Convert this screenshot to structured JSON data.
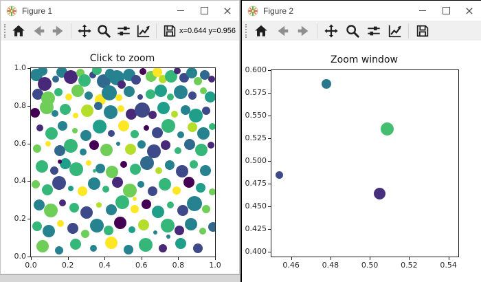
{
  "chrome": {
    "close_glyph": "×",
    "controls": [
      "minimize",
      "maximize",
      "close"
    ],
    "toolbar_icons": [
      "home",
      "back",
      "forward",
      "pan",
      "zoom-to-rect",
      "configure-subplots",
      "edit-axes",
      "save"
    ],
    "colors": {
      "toolbar_bg": "#f0f0f0",
      "titlebar_bg": "#ffffff",
      "active_border": "#000000",
      "icon": "#1f1f1f",
      "icon_disabled": "#8f8f8f"
    }
  },
  "fig1": {
    "title": "Figure 1",
    "toolbar": {
      "icons": [
        "home",
        "back",
        "forward",
        "pan",
        "zoom-to-rect",
        "configure-subplots",
        "edit-axes",
        "save"
      ],
      "coords": "x=0.644 y=0.956"
    },
    "chart_data": {
      "type": "scatter",
      "title": "Click to zoom",
      "xlabel": "",
      "ylabel": "",
      "xlim": [
        0,
        1
      ],
      "ylim": [
        0,
        1
      ],
      "grid": false,
      "legend": false,
      "xticks": [
        0.0,
        0.2,
        0.4,
        0.6,
        0.8,
        1.0
      ],
      "xtick_labels": [
        "0.0",
        "0.2",
        "0.4",
        "0.6",
        "0.8",
        "1.0"
      ],
      "yticks": [
        0.0,
        0.2,
        0.4,
        0.6,
        0.8,
        1.0
      ],
      "ytick_labels": [
        "0.0",
        "0.2",
        "0.4",
        "0.6",
        "0.8",
        "1.0"
      ],
      "palette": [
        "#440154",
        "#482878",
        "#3e4989",
        "#31688e",
        "#26828e",
        "#1f9e89",
        "#35b779",
        "#6ece58",
        "#b5de2b",
        "#fde725"
      ],
      "points": [
        [
          0.028,
          0.962,
          9,
          4
        ],
        [
          0.075,
          0.915,
          10,
          1
        ],
        [
          0.062,
          0.985,
          7,
          4
        ],
        [
          0.135,
          0.942,
          5,
          3
        ],
        [
          0.168,
          0.978,
          8,
          4
        ],
        [
          0.215,
          0.952,
          10,
          1
        ],
        [
          0.268,
          0.975,
          6,
          7
        ],
        [
          0.292,
          0.936,
          9,
          6
        ],
        [
          0.336,
          0.962,
          5,
          2
        ],
        [
          0.358,
          0.988,
          7,
          6
        ],
        [
          0.395,
          0.932,
          10,
          3
        ],
        [
          0.428,
          0.972,
          7,
          4
        ],
        [
          0.465,
          0.948,
          11,
          4
        ],
        [
          0.492,
          0.912,
          6,
          1
        ],
        [
          0.532,
          0.965,
          9,
          4
        ],
        [
          0.572,
          0.938,
          7,
          2
        ],
        [
          0.608,
          0.982,
          5,
          0
        ],
        [
          0.652,
          0.958,
          8,
          7
        ],
        [
          0.688,
          0.978,
          7,
          9
        ],
        [
          0.715,
          0.942,
          6,
          8
        ],
        [
          0.762,
          0.958,
          9,
          6
        ],
        [
          0.795,
          0.985,
          5,
          1
        ],
        [
          0.832,
          0.948,
          7,
          2
        ],
        [
          0.872,
          0.975,
          8,
          4
        ],
        [
          0.908,
          0.932,
          6,
          7
        ],
        [
          0.945,
          0.962,
          7,
          3
        ],
        [
          0.982,
          0.942,
          5,
          1
        ],
        [
          0.038,
          0.862,
          8,
          2
        ],
        [
          0.095,
          0.838,
          10,
          7
        ],
        [
          0.148,
          0.872,
          6,
          6
        ],
        [
          0.205,
          0.845,
          5,
          9
        ],
        [
          0.252,
          0.878,
          9,
          7
        ],
        [
          0.315,
          0.855,
          6,
          4
        ],
        [
          0.378,
          0.832,
          8,
          9
        ],
        [
          0.425,
          0.868,
          11,
          4
        ],
        [
          0.478,
          0.842,
          5,
          9
        ],
        [
          0.535,
          0.875,
          8,
          4
        ],
        [
          0.592,
          0.848,
          4,
          2
        ],
        [
          0.648,
          0.862,
          7,
          6
        ],
        [
          0.705,
          0.878,
          9,
          5
        ],
        [
          0.758,
          0.845,
          5,
          6
        ],
        [
          0.815,
          0.872,
          10,
          4
        ],
        [
          0.878,
          0.855,
          6,
          2
        ],
        [
          0.935,
          0.878,
          5,
          7
        ],
        [
          0.975,
          0.848,
          8,
          5
        ],
        [
          0.022,
          0.762,
          7,
          0
        ],
        [
          0.085,
          0.792,
          10,
          7
        ],
        [
          0.132,
          0.758,
          5,
          4
        ],
        [
          0.185,
          0.782,
          8,
          6
        ],
        [
          0.242,
          0.748,
          4,
          9
        ],
        [
          0.305,
          0.772,
          9,
          8
        ],
        [
          0.365,
          0.798,
          6,
          3
        ],
        [
          0.432,
          0.765,
          10,
          4
        ],
        [
          0.488,
          0.785,
          5,
          9
        ],
        [
          0.545,
          0.755,
          8,
          1
        ],
        [
          0.605,
          0.778,
          11,
          2
        ],
        [
          0.662,
          0.752,
          6,
          1
        ],
        [
          0.722,
          0.788,
          9,
          5
        ],
        [
          0.778,
          0.755,
          5,
          8
        ],
        [
          0.838,
          0.778,
          7,
          4
        ],
        [
          0.895,
          0.748,
          10,
          5
        ],
        [
          0.952,
          0.775,
          6,
          2
        ],
        [
          0.048,
          0.682,
          5,
          1
        ],
        [
          0.112,
          0.655,
          9,
          6
        ],
        [
          0.172,
          0.695,
          7,
          4
        ],
        [
          0.238,
          0.668,
          4,
          7
        ],
        [
          0.298,
          0.642,
          8,
          4
        ],
        [
          0.372,
          0.688,
          10,
          5
        ],
        [
          0.438,
          0.655,
          5,
          2
        ],
        [
          0.502,
          0.695,
          8,
          9
        ],
        [
          0.565,
          0.648,
          6,
          6
        ],
        [
          0.625,
          0.682,
          4,
          0
        ],
        [
          0.685,
          0.658,
          8,
          2
        ],
        [
          0.748,
          0.692,
          10,
          6
        ],
        [
          0.812,
          0.645,
          5,
          4
        ],
        [
          0.875,
          0.685,
          7,
          8
        ],
        [
          0.938,
          0.652,
          9,
          4
        ],
        [
          0.985,
          0.688,
          5,
          6
        ],
        [
          0.032,
          0.572,
          6,
          7
        ],
        [
          0.092,
          0.598,
          4,
          9
        ],
        [
          0.155,
          0.562,
          8,
          3
        ],
        [
          0.218,
          0.588,
          10,
          6
        ],
        [
          0.282,
          0.555,
          5,
          4
        ],
        [
          0.345,
          0.592,
          7,
          0
        ],
        [
          0.412,
          0.565,
          9,
          7
        ],
        [
          0.475,
          0.598,
          3,
          4
        ],
        [
          0.542,
          0.568,
          8,
          8
        ],
        [
          0.602,
          0.595,
          6,
          4
        ],
        [
          0.668,
          0.558,
          10,
          2
        ],
        [
          0.732,
          0.592,
          7,
          1
        ],
        [
          0.798,
          0.562,
          5,
          6
        ],
        [
          0.862,
          0.595,
          8,
          3
        ],
        [
          0.925,
          0.565,
          9,
          6
        ],
        [
          0.978,
          0.592,
          5,
          1
        ],
        [
          0.058,
          0.478,
          9,
          6
        ],
        [
          0.125,
          0.455,
          6,
          2
        ],
        [
          0.188,
          0.492,
          8,
          5
        ],
        [
          0.248,
          0.465,
          10,
          6
        ],
        [
          0.312,
          0.498,
          4,
          9
        ],
        [
          0.375,
          0.468,
          7,
          4
        ],
        [
          0.442,
          0.448,
          9,
          7
        ],
        [
          0.505,
          0.488,
          5,
          0
        ],
        [
          0.568,
          0.462,
          8,
          6
        ],
        [
          0.632,
          0.495,
          10,
          3
        ],
        [
          0.695,
          0.455,
          5,
          8
        ],
        [
          0.755,
          0.485,
          7,
          4
        ],
        [
          0.822,
          0.452,
          9,
          2
        ],
        [
          0.885,
          0.488,
          6,
          6
        ],
        [
          0.948,
          0.458,
          8,
          4
        ],
        [
          0.025,
          0.382,
          6,
          7
        ],
        [
          0.088,
          0.355,
          8,
          6
        ],
        [
          0.152,
          0.392,
          10,
          2
        ],
        [
          0.215,
          0.362,
          4,
          5
        ],
        [
          0.278,
          0.345,
          7,
          9
        ],
        [
          0.342,
          0.388,
          9,
          4
        ],
        [
          0.408,
          0.358,
          5,
          6
        ],
        [
          0.472,
          0.395,
          8,
          1
        ],
        [
          0.538,
          0.352,
          10,
          7
        ],
        [
          0.598,
          0.385,
          5,
          4
        ],
        [
          0.662,
          0.348,
          7,
          2
        ],
        [
          0.728,
          0.382,
          9,
          6
        ],
        [
          0.792,
          0.352,
          6,
          9
        ],
        [
          0.858,
          0.395,
          8,
          0
        ],
        [
          0.922,
          0.365,
          7,
          5
        ],
        [
          0.985,
          0.342,
          5,
          7
        ],
        [
          0.045,
          0.272,
          8,
          4
        ],
        [
          0.108,
          0.245,
          10,
          7
        ],
        [
          0.172,
          0.285,
          5,
          1
        ],
        [
          0.235,
          0.258,
          7,
          6
        ],
        [
          0.302,
          0.232,
          9,
          2
        ],
        [
          0.368,
          0.275,
          4,
          8
        ],
        [
          0.435,
          0.248,
          8,
          4
        ],
        [
          0.498,
          0.288,
          10,
          6
        ],
        [
          0.562,
          0.252,
          6,
          9
        ],
        [
          0.628,
          0.278,
          7,
          0
        ],
        [
          0.692,
          0.238,
          9,
          5
        ],
        [
          0.758,
          0.272,
          5,
          6
        ],
        [
          0.825,
          0.245,
          8,
          2
        ],
        [
          0.888,
          0.282,
          11,
          4
        ],
        [
          0.952,
          0.252,
          6,
          7
        ],
        [
          0.035,
          0.162,
          7,
          6
        ],
        [
          0.098,
          0.135,
          9,
          4
        ],
        [
          0.162,
          0.175,
          5,
          9
        ],
        [
          0.228,
          0.148,
          8,
          2
        ],
        [
          0.295,
          0.122,
          6,
          7
        ],
        [
          0.358,
          0.165,
          10,
          4
        ],
        [
          0.422,
          0.138,
          7,
          6
        ],
        [
          0.485,
          0.178,
          9,
          0
        ],
        [
          0.548,
          0.142,
          5,
          5
        ],
        [
          0.612,
          0.168,
          8,
          8
        ],
        [
          0.675,
          0.128,
          3,
          4
        ],
        [
          0.742,
          0.165,
          10,
          6
        ],
        [
          0.805,
          0.138,
          7,
          1
        ],
        [
          0.868,
          0.172,
          9,
          4
        ],
        [
          0.932,
          0.135,
          5,
          7
        ],
        [
          0.988,
          0.158,
          7,
          3
        ],
        [
          0.065,
          0.055,
          9,
          7
        ],
        [
          0.152,
          0.032,
          6,
          4
        ],
        [
          0.242,
          0.065,
          8,
          6
        ],
        [
          0.338,
          0.042,
          5,
          4
        ],
        [
          0.435,
          0.072,
          9,
          9
        ],
        [
          0.528,
          0.038,
          7,
          4
        ],
        [
          0.622,
          0.062,
          10,
          6
        ],
        [
          0.718,
          0.045,
          6,
          1
        ],
        [
          0.812,
          0.068,
          8,
          5
        ],
        [
          0.905,
          0.042,
          7,
          2
        ],
        [
          0.155,
          0.505,
          3,
          0
        ],
        [
          0.565,
          0.305,
          3,
          9
        ],
        [
          0.345,
          0.455,
          2.5,
          6
        ],
        [
          0.745,
          0.105,
          3,
          4
        ]
      ]
    }
  },
  "fig2": {
    "title": "Figure 2",
    "toolbar": {
      "icons": [
        "home",
        "back",
        "forward",
        "pan",
        "zoom-to-rect",
        "configure-subplots",
        "edit-axes",
        "save"
      ]
    },
    "chart_data": {
      "type": "scatter",
      "title": "Zoom window",
      "xlabel": "",
      "ylabel": "",
      "xlim": [
        0.45,
        0.545
      ],
      "ylim": [
        0.395,
        0.6
      ],
      "grid": false,
      "legend": false,
      "xticks": [
        0.46,
        0.48,
        0.5,
        0.52,
        0.54
      ],
      "xtick_labels": [
        "0.46",
        "0.48",
        "0.50",
        "0.52",
        "0.54"
      ],
      "yticks": [
        0.4,
        0.425,
        0.45,
        0.475,
        0.5,
        0.525,
        0.55,
        0.575,
        0.6
      ],
      "ytick_labels": [
        "0.400",
        "0.425",
        "0.450",
        "0.475",
        "0.500",
        "0.525",
        "0.550",
        "0.575",
        "0.600"
      ],
      "palette": [
        "#440154",
        "#482878",
        "#3e4989",
        "#31688e",
        "#26828e",
        "#1f9e89",
        "#35b779",
        "#6ece58",
        "#b5de2b",
        "#fde725"
      ],
      "points": [
        [
          0.454,
          0.485,
          5.5,
          "#3e4989"
        ],
        [
          0.478,
          0.585,
          7,
          "#2a788e"
        ],
        [
          0.509,
          0.535,
          9.5,
          "#44bf70"
        ],
        [
          0.505,
          0.464,
          8.5,
          "#46307e"
        ]
      ]
    }
  }
}
